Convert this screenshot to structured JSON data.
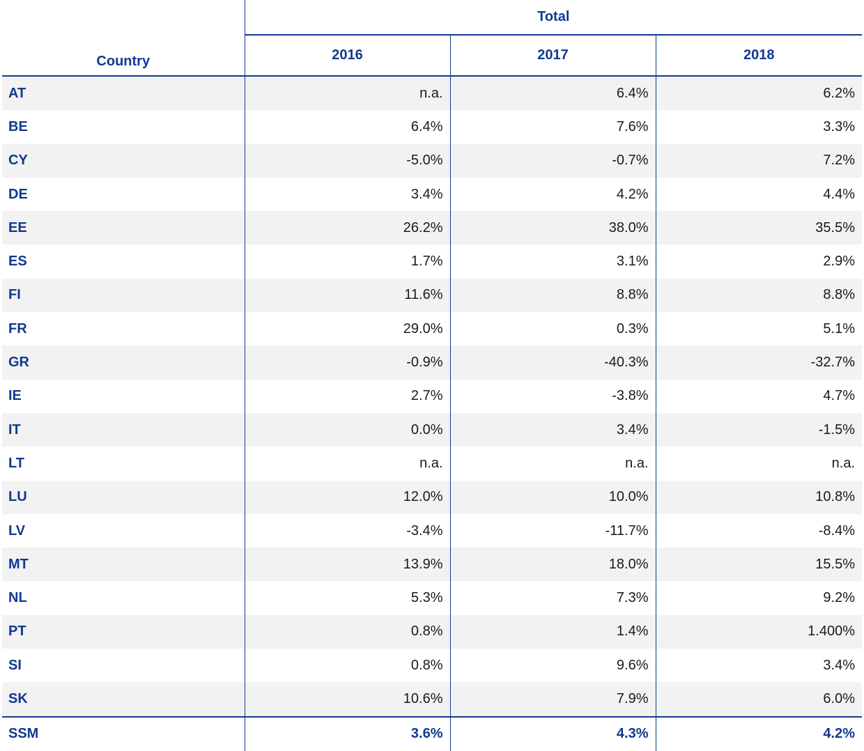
{
  "table": {
    "group_header": "Total",
    "country_header": "Country",
    "years": [
      "2016",
      "2017",
      "2018"
    ],
    "rows": [
      {
        "country": "AT",
        "values": [
          "n.a.",
          "6.4%",
          "6.2%"
        ]
      },
      {
        "country": "BE",
        "values": [
          "6.4%",
          "7.6%",
          "3.3%"
        ]
      },
      {
        "country": "CY",
        "values": [
          "-5.0%",
          "-0.7%",
          "7.2%"
        ]
      },
      {
        "country": "DE",
        "values": [
          "3.4%",
          "4.2%",
          "4.4%"
        ]
      },
      {
        "country": "EE",
        "values": [
          "26.2%",
          "38.0%",
          "35.5%"
        ]
      },
      {
        "country": "ES",
        "values": [
          "1.7%",
          "3.1%",
          "2.9%"
        ]
      },
      {
        "country": "FI",
        "values": [
          "11.6%",
          "8.8%",
          "8.8%"
        ]
      },
      {
        "country": "FR",
        "values": [
          "29.0%",
          "0.3%",
          "5.1%"
        ]
      },
      {
        "country": "GR",
        "values": [
          "-0.9%",
          "-40.3%",
          "-32.7%"
        ]
      },
      {
        "country": "IE",
        "values": [
          "2.7%",
          "-3.8%",
          "4.7%"
        ]
      },
      {
        "country": "IT",
        "values": [
          "0.0%",
          "3.4%",
          "-1.5%"
        ]
      },
      {
        "country": "LT",
        "values": [
          "n.a.",
          "n.a.",
          "n.a."
        ]
      },
      {
        "country": "LU",
        "values": [
          "12.0%",
          "10.0%",
          "10.8%"
        ]
      },
      {
        "country": "LV",
        "values": [
          "-3.4%",
          "-11.7%",
          "-8.4%"
        ]
      },
      {
        "country": "MT",
        "values": [
          "13.9%",
          "18.0%",
          "15.5%"
        ]
      },
      {
        "country": "NL",
        "values": [
          "5.3%",
          "7.3%",
          "9.2%"
        ]
      },
      {
        "country": "PT",
        "values": [
          "0.8%",
          "1.4%",
          "1.400%"
        ]
      },
      {
        "country": "SI",
        "values": [
          "0.8%",
          "9.6%",
          "3.4%"
        ]
      },
      {
        "country": "SK",
        "values": [
          "10.6%",
          "7.9%",
          "6.0%"
        ]
      }
    ],
    "total": {
      "country": "SSM",
      "values": [
        "3.6%",
        "4.3%",
        "4.2%"
      ]
    }
  },
  "colors": {
    "accent": "#103a8f",
    "stripe": "#f2f2f2"
  }
}
